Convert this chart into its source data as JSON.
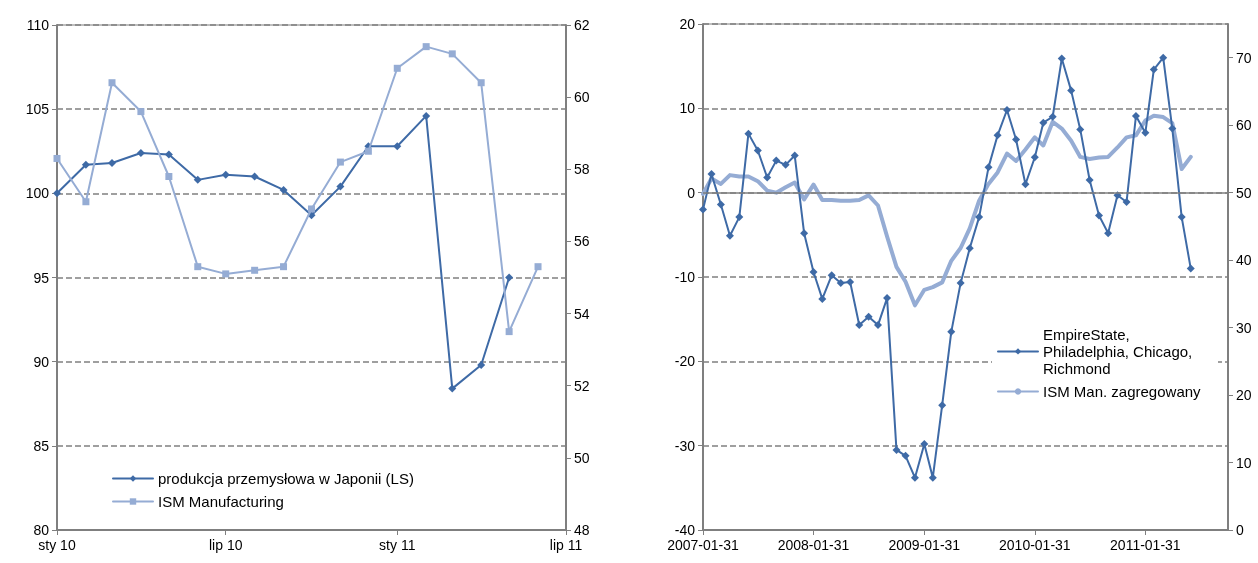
{
  "chart_data": [
    {
      "type": "line",
      "x": [
        "2010-01",
        "2010-02",
        "2010-03",
        "2010-04",
        "2010-05",
        "2010-06",
        "2010-07",
        "2010-08",
        "2010-09",
        "2010-10",
        "2010-11",
        "2010-12",
        "2011-01",
        "2011-02",
        "2011-03",
        "2011-04",
        "2011-05",
        "2011-06"
      ],
      "xlim": [
        "2010-01",
        "2011-07"
      ],
      "xticks": [
        {
          "value": "2010-01",
          "label": "sty 10"
        },
        {
          "value": "2010-07",
          "label": "lip 10"
        },
        {
          "value": "2011-01",
          "label": "sty 11"
        },
        {
          "value": "2011-07",
          "label": "lip 11"
        }
      ],
      "ylim": [
        80,
        110
      ],
      "yticks": [
        80,
        85,
        90,
        95,
        100,
        105,
        110
      ],
      "y2lim": [
        48,
        62
      ],
      "y2ticks": [
        48,
        50,
        52,
        54,
        56,
        58,
        60,
        62
      ],
      "grid": "y",
      "legend": "bottom left",
      "series": [
        {
          "name": "produkcja przemysłowa w Japonii (LS)",
          "color": "#3e6aa6",
          "marker": "diamond",
          "values": [
            100.0,
            101.7,
            101.8,
            102.4,
            102.3,
            100.8,
            101.1,
            101.0,
            100.2,
            98.7,
            100.4,
            102.8,
            102.8,
            104.6,
            88.4,
            89.8,
            95.0,
            null
          ]
        },
        {
          "name": "ISM Manufacturing",
          "color": "#95acd4",
          "marker": "square",
          "axis": "y2",
          "values": [
            58.3,
            57.1,
            60.4,
            59.6,
            57.8,
            55.3,
            55.1,
            55.2,
            55.3,
            56.9,
            58.2,
            58.5,
            60.8,
            61.4,
            61.2,
            60.4,
            53.5,
            55.3
          ]
        }
      ]
    },
    {
      "type": "line",
      "x": [
        "2007-01-31",
        "2007-02-28",
        "2007-03-31",
        "2007-04-30",
        "2007-05-31",
        "2007-06-30",
        "2007-07-31",
        "2007-08-31",
        "2007-09-30",
        "2007-10-31",
        "2007-11-30",
        "2007-12-31",
        "2008-01-31",
        "2008-02-29",
        "2008-03-31",
        "2008-04-30",
        "2008-05-31",
        "2008-06-30",
        "2008-07-31",
        "2008-08-31",
        "2008-09-30",
        "2008-10-31",
        "2008-11-30",
        "2008-12-31",
        "2009-01-31",
        "2009-02-28",
        "2009-03-31",
        "2009-04-30",
        "2009-05-31",
        "2009-06-30",
        "2009-07-31",
        "2009-08-31",
        "2009-09-30",
        "2009-10-31",
        "2009-11-30",
        "2009-12-31",
        "2010-01-31",
        "2010-02-28",
        "2010-03-31",
        "2010-04-30",
        "2010-05-31",
        "2010-06-30",
        "2010-07-31",
        "2010-08-31",
        "2010-09-30",
        "2010-10-31",
        "2010-11-30",
        "2010-12-31",
        "2011-01-31",
        "2011-02-28",
        "2011-03-31",
        "2011-04-30",
        "2011-05-31",
        "2011-06-30"
      ],
      "xlim": [
        "2007-01-31",
        "2011-10-31"
      ],
      "xticks": [
        {
          "value": "2007-01-31",
          "label": "2007-01-31"
        },
        {
          "value": "2008-01-31",
          "label": "2008-01-31"
        },
        {
          "value": "2009-01-31",
          "label": "2009-01-31"
        },
        {
          "value": "2010-01-31",
          "label": "2010-01-31"
        },
        {
          "value": "2011-01-31",
          "label": "2011-01-31"
        }
      ],
      "ylim": [
        -40,
        20
      ],
      "yticks": [
        -40,
        -30,
        -20,
        -10,
        0,
        10,
        20
      ],
      "y2lim": [
        0,
        75
      ],
      "y2ticks": [
        0,
        10,
        20,
        30,
        40,
        50,
        60,
        70
      ],
      "grid": "y",
      "legend": "right",
      "ref_lines": [
        {
          "axis": "y",
          "value": 0,
          "line_style": "solid",
          "color": "#7f7f7f"
        }
      ],
      "series": [
        {
          "name": "EmpireState, Philadelphia, Chicago, Richmond",
          "color": "#3e6aa6",
          "marker": "diamond",
          "values": [
            -2.0,
            2.2,
            -1.4,
            -5.1,
            -2.9,
            7.0,
            5.0,
            1.8,
            3.8,
            3.3,
            4.4,
            -4.8,
            -9.4,
            -12.6,
            -9.8,
            -10.7,
            -10.6,
            -15.7,
            -14.7,
            -15.7,
            -12.5,
            -30.5,
            -31.2,
            -33.8,
            -29.8,
            -33.8,
            -25.2,
            -16.5,
            -10.7,
            -6.6,
            -2.9,
            3.0,
            6.8,
            9.8,
            6.3,
            1.0,
            4.2,
            8.3,
            9.0,
            15.9,
            12.1,
            7.5,
            1.5,
            -2.7,
            -4.8,
            -0.3,
            -1.1,
            9.1,
            7.1,
            14.6,
            16.0,
            7.6,
            -2.9,
            -9.0
          ]
        },
        {
          "name": "ISM Man. zagregowany",
          "color": "#95acd4",
          "marker": "none",
          "axis": "y2",
          "values": [
            49.8,
            52.1,
            51.3,
            52.6,
            52.4,
            52.4,
            51.7,
            50.3,
            50.0,
            50.8,
            51.5,
            49.0,
            51.2,
            48.9,
            48.9,
            48.8,
            48.8,
            48.9,
            49.6,
            48.1,
            43.5,
            39.0,
            36.8,
            33.3,
            35.6,
            36.0,
            36.7,
            39.9,
            41.8,
            44.7,
            48.8,
            51.3,
            53.0,
            55.8,
            54.7,
            56.4,
            58.2,
            57.0,
            60.5,
            59.5,
            57.7,
            55.3,
            55.0,
            55.2,
            55.3,
            56.7,
            58.2,
            58.5,
            60.7,
            61.4,
            61.2,
            60.3,
            53.5,
            55.3
          ]
        }
      ]
    }
  ]
}
